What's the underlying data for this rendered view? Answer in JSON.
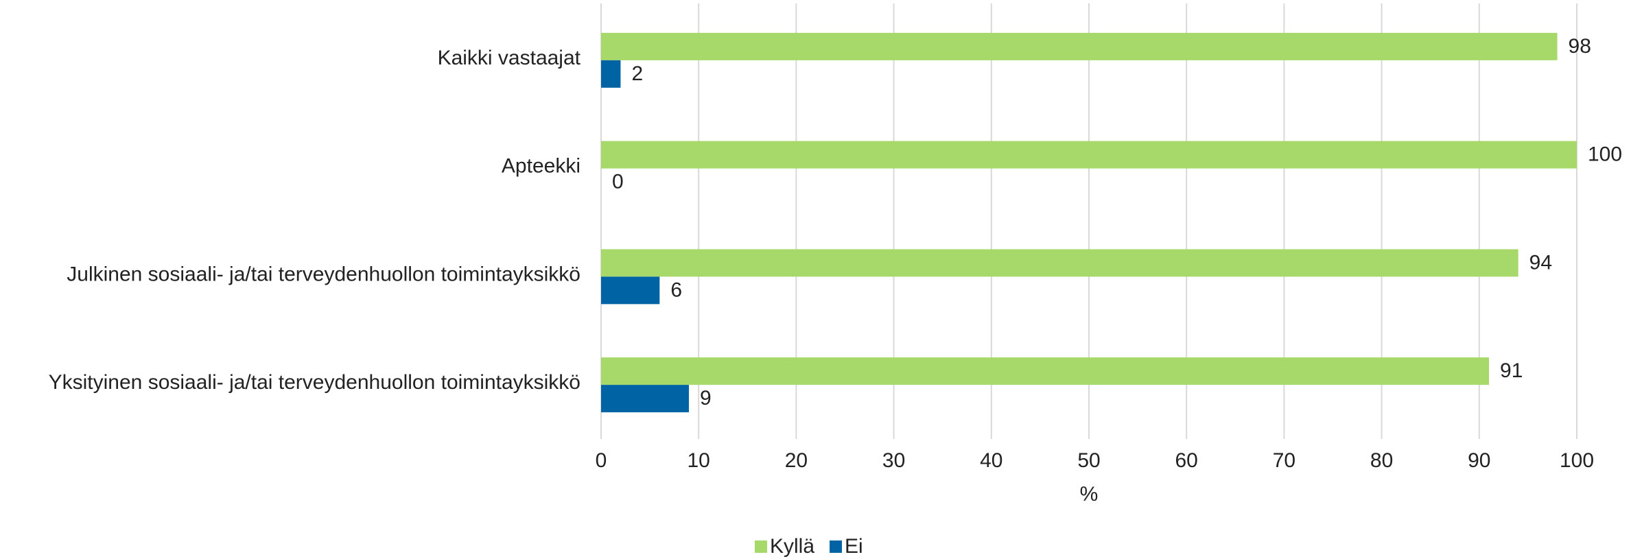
{
  "chart_data": {
    "type": "barh",
    "categories": [
      "Kaikki vastaajat",
      "Apteekki",
      "Julkinen sosiaali- ja/tai terveydenhuollon toimintayksikkö",
      "Yksityinen sosiaali- ja/tai terveydenhuollon toimintayksikkö"
    ],
    "series": [
      {
        "name": "Kyllä",
        "color": "#a6d96a",
        "values": [
          98,
          100,
          94,
          91
        ]
      },
      {
        "name": "Ei",
        "color": "#0063a3",
        "values": [
          2,
          0,
          6,
          9
        ]
      }
    ],
    "xlim": [
      0,
      100
    ],
    "xticks": [
      0,
      10,
      20,
      30,
      40,
      50,
      60,
      70,
      80,
      90,
      100
    ],
    "xlabel": "%",
    "grid": true,
    "legend": "bottom"
  }
}
